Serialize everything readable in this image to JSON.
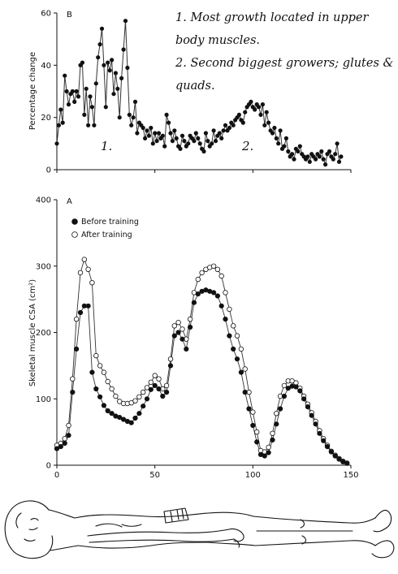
{
  "annotations": {
    "note_1": "1. Most growth located in upper body muscles.",
    "note_2": "2. Second biggest growers; glutes & quads.",
    "marker_1": "1.",
    "marker_2": "2."
  },
  "colors": {
    "ink": "#111111",
    "line": "#333333",
    "background": "#ffffff"
  },
  "chart_data": [
    {
      "type": "line",
      "panel_label": "B",
      "ylabel": "Percentage change",
      "xlim": [
        0,
        150
      ],
      "ylim": [
        0,
        60
      ],
      "yticks": [
        0,
        20,
        40,
        60
      ],
      "grid": false,
      "series": [
        {
          "name": "",
          "marker": "filled-circle",
          "x": [
            0,
            1,
            2,
            3,
            4,
            5,
            6,
            7,
            8,
            9,
            10,
            11,
            12,
            13,
            14,
            15,
            16,
            17,
            18,
            19,
            20,
            21,
            22,
            23,
            24,
            25,
            26,
            27,
            28,
            29,
            30,
            31,
            32,
            33,
            34,
            35,
            36,
            37,
            38,
            39,
            40,
            41,
            42,
            43,
            44,
            45,
            46,
            47,
            48,
            49,
            50,
            51,
            52,
            53,
            54,
            55,
            56,
            57,
            58,
            59,
            60,
            61,
            62,
            63,
            64,
            65,
            66,
            67,
            68,
            69,
            70,
            71,
            72,
            73,
            74,
            75,
            76,
            77,
            78,
            79,
            80,
            81,
            82,
            83,
            84,
            85,
            86,
            87,
            88,
            89,
            90,
            91,
            92,
            93,
            94,
            95,
            96,
            97,
            98,
            99,
            100,
            101,
            102,
            103,
            104,
            105,
            106,
            107,
            108,
            109,
            110,
            111,
            112,
            113,
            114,
            115,
            116,
            117,
            118,
            119,
            120,
            121,
            122,
            123,
            124,
            125,
            126,
            127,
            128,
            129,
            130,
            131,
            132,
            133,
            134,
            135,
            136,
            137,
            138,
            139,
            140,
            141,
            142,
            143,
            144,
            145
          ],
          "y": [
            10,
            17,
            23,
            18,
            36,
            30,
            25,
            29,
            30,
            26,
            30,
            28,
            40,
            41,
            21,
            31,
            17,
            28,
            24,
            17,
            33,
            43,
            48,
            54,
            40,
            24,
            41,
            38,
            42,
            29,
            37,
            31,
            20,
            35,
            46,
            57,
            39,
            21,
            17,
            20,
            26,
            14,
            18,
            17,
            16,
            12,
            15,
            13,
            16,
            10,
            14,
            11,
            14,
            12,
            13,
            9,
            21,
            18,
            14,
            11,
            15,
            12,
            9,
            8,
            13,
            11,
            9,
            10,
            13,
            12,
            11,
            14,
            12,
            10,
            8,
            7,
            14,
            11,
            9,
            10,
            15,
            11,
            13,
            14,
            12,
            15,
            17,
            15,
            16,
            18,
            17,
            19,
            20,
            21,
            19,
            18,
            22,
            24,
            25,
            26,
            24,
            23,
            25,
            24,
            21,
            25,
            17,
            22,
            18,
            15,
            14,
            16,
            12,
            10,
            15,
            8,
            9,
            12,
            7,
            5,
            6,
            4,
            8,
            7,
            9,
            6,
            5,
            4,
            5,
            3,
            6,
            5,
            4,
            6,
            5,
            7,
            4,
            2,
            6,
            7,
            5,
            4,
            6,
            10,
            3,
            5
          ]
        }
      ]
    },
    {
      "type": "line",
      "panel_label": "A",
      "ylabel": "Skeletal muscle CSA (cm²)",
      "xlim": [
        0,
        150
      ],
      "ylim": [
        0,
        400
      ],
      "xticks": [
        0,
        50,
        100,
        150
      ],
      "yticks": [
        0,
        100,
        200,
        300,
        400
      ],
      "grid": false,
      "legend_position": "top-left",
      "series": [
        {
          "name": "Before training",
          "marker": "filled-circle",
          "x": [
            0,
            2,
            4,
            6,
            8,
            10,
            12,
            14,
            16,
            18,
            20,
            22,
            24,
            26,
            28,
            30,
            32,
            34,
            36,
            38,
            40,
            42,
            44,
            46,
            48,
            50,
            52,
            54,
            56,
            58,
            60,
            62,
            64,
            66,
            68,
            70,
            72,
            74,
            76,
            78,
            80,
            82,
            84,
            86,
            88,
            90,
            92,
            94,
            96,
            98,
            100,
            102,
            104,
            106,
            108,
            110,
            112,
            114,
            116,
            118,
            120,
            122,
            124,
            126,
            128,
            130,
            132,
            134,
            136,
            138,
            140,
            142,
            144,
            146,
            148
          ],
          "y": [
            25,
            28,
            33,
            45,
            110,
            175,
            230,
            240,
            240,
            140,
            115,
            103,
            90,
            82,
            78,
            74,
            72,
            69,
            66,
            64,
            71,
            78,
            89,
            100,
            114,
            120,
            115,
            104,
            110,
            150,
            195,
            200,
            190,
            175,
            208,
            245,
            258,
            262,
            264,
            262,
            260,
            255,
            240,
            220,
            195,
            175,
            160,
            140,
            110,
            85,
            60,
            35,
            16,
            14,
            19,
            38,
            62,
            85,
            104,
            116,
            119,
            118,
            112,
            100,
            88,
            75,
            62,
            48,
            37,
            28,
            20,
            14,
            9,
            5,
            3
          ]
        },
        {
          "name": "After training",
          "marker": "open-circle",
          "x": [
            0,
            2,
            4,
            6,
            8,
            10,
            12,
            14,
            16,
            18,
            20,
            22,
            24,
            26,
            28,
            30,
            32,
            34,
            36,
            38,
            40,
            42,
            44,
            46,
            48,
            50,
            52,
            54,
            56,
            58,
            60,
            62,
            64,
            66,
            68,
            70,
            72,
            74,
            76,
            78,
            80,
            82,
            84,
            86,
            88,
            90,
            92,
            94,
            96,
            98,
            100,
            102,
            104,
            106,
            108,
            110,
            112,
            114,
            116,
            118,
            120,
            122,
            124,
            126,
            128,
            130,
            132,
            134,
            136,
            138,
            140,
            142,
            144,
            146,
            148
          ],
          "y": [
            30,
            33,
            40,
            60,
            130,
            220,
            290,
            310,
            295,
            275,
            165,
            150,
            140,
            126,
            115,
            104,
            96,
            93,
            93,
            94,
            97,
            103,
            110,
            117,
            125,
            135,
            130,
            115,
            120,
            160,
            210,
            215,
            205,
            190,
            220,
            260,
            280,
            290,
            295,
            298,
            300,
            295,
            285,
            260,
            235,
            210,
            195,
            175,
            145,
            110,
            80,
            50,
            22,
            20,
            27,
            48,
            78,
            104,
            120,
            127,
            127,
            124,
            116,
            104,
            92,
            79,
            66,
            52,
            40,
            30,
            21,
            15,
            10,
            6,
            3
          ]
        }
      ]
    }
  ]
}
